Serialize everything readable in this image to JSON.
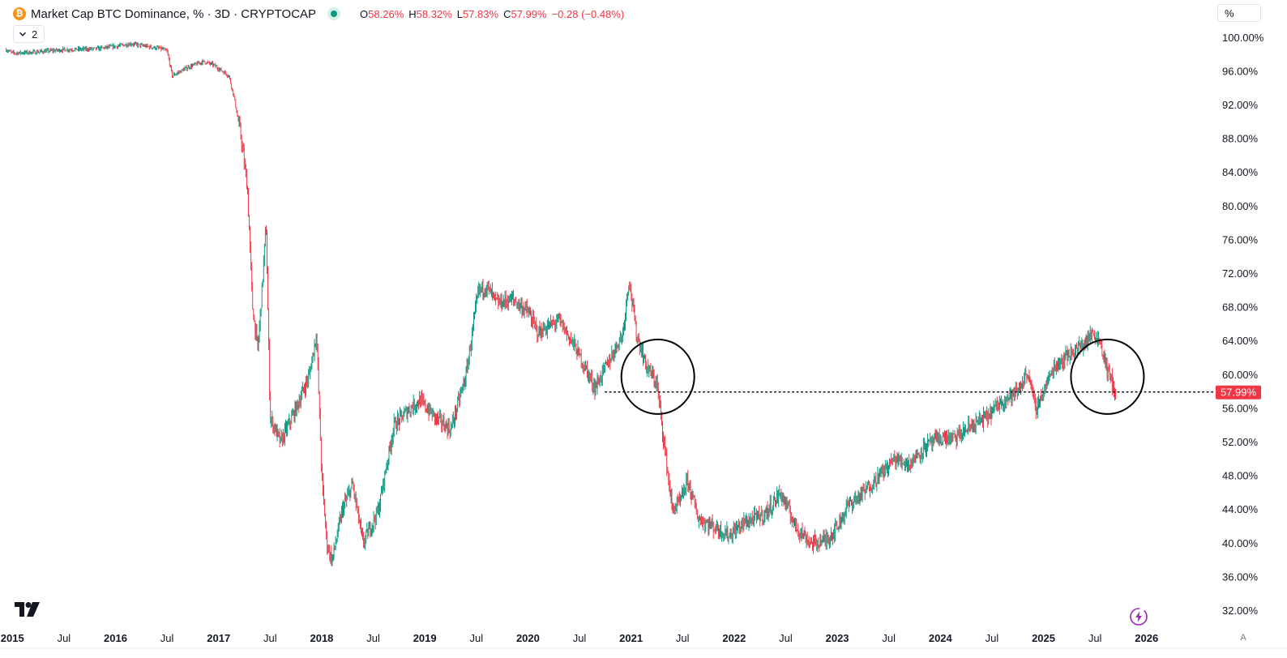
{
  "legend": {
    "symbol_badge": "₿",
    "title": "Market Cap BTC Dominance, % · 3D · CRYPTOCAP",
    "open_label": "O",
    "open_value": "58.26%",
    "high_label": "H",
    "high_value": "58.32%",
    "low_label": "L",
    "low_value": "57.83%",
    "close_label": "C",
    "close_value": "57.99%",
    "change": "−0.28 (−0.48%)",
    "collapse_count": "2"
  },
  "controls": {
    "scale_mode": "%",
    "auto_scale": "A"
  },
  "colors": {
    "up": "#089981",
    "down": "#f23645",
    "accent_coin": "#f7931a",
    "price_label_bg": "#f23645"
  },
  "icons": {
    "logo": "tradingview-logo-icon",
    "bolt": "lightning-bolt-icon",
    "chevron": "chevron-down-icon"
  },
  "chart_data": {
    "type": "candlestick",
    "y_axis": {
      "ticks": [
        "32.00%",
        "36.00%",
        "40.00%",
        "44.00%",
        "48.00%",
        "52.00%",
        "56.00%",
        "60.00%",
        "64.00%",
        "68.00%",
        "72.00%",
        "76.00%",
        "80.00%",
        "84.00%",
        "88.00%",
        "92.00%",
        "96.00%",
        "100.00%"
      ],
      "tick_values": [
        32,
        36,
        40,
        44,
        48,
        52,
        56,
        60,
        64,
        68,
        72,
        76,
        80,
        84,
        88,
        92,
        96,
        100
      ],
      "range": [
        29.5,
        104.5
      ]
    },
    "x_axis": {
      "ticks": [
        {
          "label": "2015",
          "date": 2015.0,
          "bold": true
        },
        {
          "label": "Jul",
          "date": 2015.5,
          "bold": false
        },
        {
          "label": "2016",
          "date": 2016.0,
          "bold": true
        },
        {
          "label": "Jul",
          "date": 2016.5,
          "bold": false
        },
        {
          "label": "2017",
          "date": 2017.0,
          "bold": true
        },
        {
          "label": "Jul",
          "date": 2017.5,
          "bold": false
        },
        {
          "label": "2018",
          "date": 2018.0,
          "bold": true
        },
        {
          "label": "Jul",
          "date": 2018.5,
          "bold": false
        },
        {
          "label": "2019",
          "date": 2019.0,
          "bold": true
        },
        {
          "label": "Jul",
          "date": 2019.5,
          "bold": false
        },
        {
          "label": "2020",
          "date": 2020.0,
          "bold": true
        },
        {
          "label": "Jul",
          "date": 2020.5,
          "bold": false
        },
        {
          "label": "2021",
          "date": 2021.0,
          "bold": true
        },
        {
          "label": "Jul",
          "date": 2021.5,
          "bold": false
        },
        {
          "label": "2022",
          "date": 2022.0,
          "bold": true
        },
        {
          "label": "Jul",
          "date": 2022.5,
          "bold": false
        },
        {
          "label": "2023",
          "date": 2023.0,
          "bold": true
        },
        {
          "label": "Jul",
          "date": 2023.5,
          "bold": false
        },
        {
          "label": "2024",
          "date": 2024.0,
          "bold": true
        },
        {
          "label": "Jul",
          "date": 2024.5,
          "bold": false
        },
        {
          "label": "2025",
          "date": 2025.0,
          "bold": true
        },
        {
          "label": "Jul",
          "date": 2025.5,
          "bold": false
        },
        {
          "label": "2026",
          "date": 2026.0,
          "bold": true
        }
      ],
      "range": [
        2014.88,
        2026.67
      ]
    },
    "last_price_label": "57.99%",
    "last_value": 57.99,
    "series": [
      [
        2014.94,
        98.6
      ],
      [
        2015.0,
        98.2
      ],
      [
        2015.2,
        98.3
      ],
      [
        2015.5,
        98.6
      ],
      [
        2015.8,
        98.7
      ],
      [
        2016.0,
        99.0
      ],
      [
        2016.15,
        99.3
      ],
      [
        2016.3,
        99.0
      ],
      [
        2016.45,
        98.7
      ],
      [
        2016.5,
        98.4
      ],
      [
        2016.55,
        95.5
      ],
      [
        2016.7,
        96.5
      ],
      [
        2016.85,
        97.2
      ],
      [
        2016.95,
        96.8
      ],
      [
        2017.1,
        95.5
      ],
      [
        2017.15,
        93.0
      ],
      [
        2017.22,
        88.0
      ],
      [
        2017.28,
        82.0
      ],
      [
        2017.33,
        68.0
      ],
      [
        2017.38,
        63.0
      ],
      [
        2017.42,
        70.0
      ],
      [
        2017.46,
        78.0
      ],
      [
        2017.5,
        55.0
      ],
      [
        2017.6,
        52.0
      ],
      [
        2017.75,
        56.0
      ],
      [
        2017.88,
        60.0
      ],
      [
        2017.95,
        65.0
      ],
      [
        2018.0,
        48.0
      ],
      [
        2018.05,
        40.0
      ],
      [
        2018.1,
        38.0
      ],
      [
        2018.2,
        44.0
      ],
      [
        2018.3,
        47.0
      ],
      [
        2018.4,
        40.0
      ],
      [
        2018.55,
        44.0
      ],
      [
        2018.7,
        54.0
      ],
      [
        2018.85,
        56.0
      ],
      [
        2018.95,
        57.0
      ],
      [
        2019.1,
        55.0
      ],
      [
        2019.25,
        53.5
      ],
      [
        2019.4,
        60.0
      ],
      [
        2019.52,
        70.0
      ],
      [
        2019.6,
        70.5
      ],
      [
        2019.7,
        68.5
      ],
      [
        2019.85,
        69.0
      ],
      [
        2020.0,
        67.5
      ],
      [
        2020.1,
        65.0
      ],
      [
        2020.3,
        66.5
      ],
      [
        2020.45,
        63.5
      ],
      [
        2020.65,
        58.5
      ],
      [
        2020.8,
        62.0
      ],
      [
        2020.92,
        65.0
      ],
      [
        2020.98,
        71.5
      ],
      [
        2021.05,
        65.0
      ],
      [
        2021.15,
        61.0
      ],
      [
        2021.25,
        59.0
      ],
      [
        2021.32,
        52.0
      ],
      [
        2021.4,
        44.0
      ],
      [
        2021.48,
        45.0
      ],
      [
        2021.55,
        47.5
      ],
      [
        2021.65,
        43.0
      ],
      [
        2021.8,
        42.0
      ],
      [
        2021.95,
        41.0
      ],
      [
        2022.1,
        42.5
      ],
      [
        2022.3,
        43.5
      ],
      [
        2022.45,
        46.0
      ],
      [
        2022.6,
        42.0
      ],
      [
        2022.75,
        40.0
      ],
      [
        2022.9,
        40.5
      ],
      [
        2023.0,
        42.0
      ],
      [
        2023.1,
        44.5
      ],
      [
        2023.25,
        46.0
      ],
      [
        2023.4,
        48.0
      ],
      [
        2023.55,
        50.0
      ],
      [
        2023.7,
        49.5
      ],
      [
        2023.85,
        51.5
      ],
      [
        2024.0,
        52.5
      ],
      [
        2024.15,
        52.5
      ],
      [
        2024.3,
        54.0
      ],
      [
        2024.45,
        55.0
      ],
      [
        2024.6,
        57.0
      ],
      [
        2024.75,
        58.0
      ],
      [
        2024.85,
        60.5
      ],
      [
        2024.92,
        56.0
      ],
      [
        2025.0,
        58.0
      ],
      [
        2025.1,
        61.0
      ],
      [
        2025.25,
        62.5
      ],
      [
        2025.38,
        63.5
      ],
      [
        2025.48,
        65.0
      ],
      [
        2025.55,
        64.0
      ],
      [
        2025.62,
        60.5
      ],
      [
        2025.7,
        58.0
      ]
    ],
    "annotations": [
      {
        "type": "horizontal-dotted-line",
        "value": 57.99,
        "from": 2020.75
      },
      {
        "type": "circle",
        "center_date": 2021.26,
        "center_value": 59.8
      },
      {
        "type": "circle",
        "center_date": 2025.62,
        "center_value": 59.8
      }
    ],
    "grid": false
  }
}
